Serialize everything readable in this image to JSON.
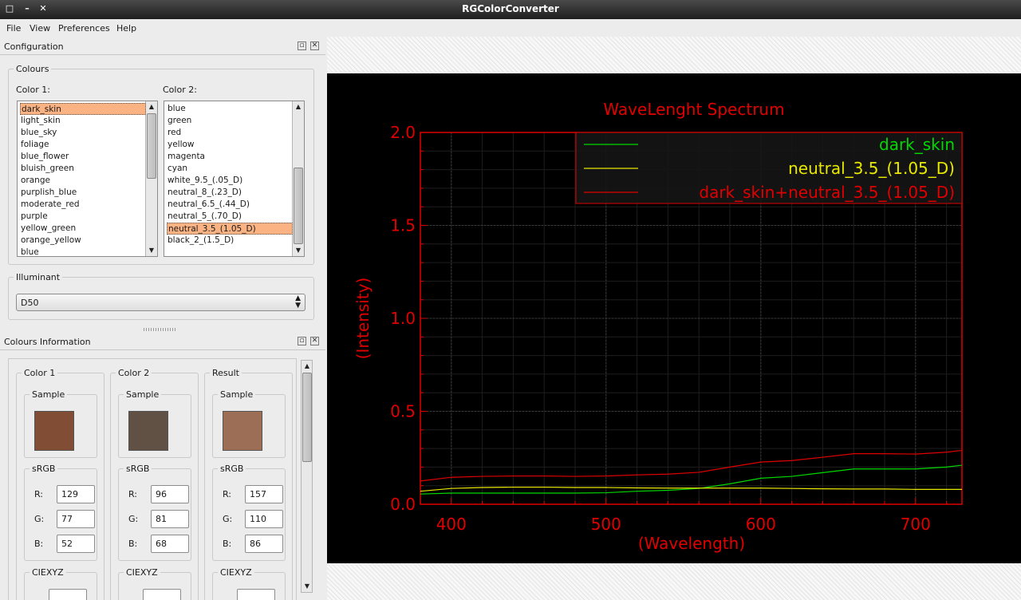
{
  "window": {
    "title": "RGColorConverter"
  },
  "menu": {
    "file": "File",
    "view": "View",
    "preferences": "Preferences",
    "help": "Help"
  },
  "configuration": {
    "title": "Configuration",
    "colours_group": "Colours",
    "color1_label": "Color 1:",
    "color2_label": "Color 2:",
    "color1_items": [
      "dark_skin",
      "light_skin",
      "blue_sky",
      "foliage",
      "blue_flower",
      "bluish_green",
      "orange",
      "purplish_blue",
      "moderate_red",
      "purple",
      "yellow_green",
      "orange_yellow",
      "blue"
    ],
    "color1_selected": "dark_skin",
    "color2_items": [
      "blue",
      "green",
      "red",
      "yellow",
      "magenta",
      "cyan",
      "white_9.5_(.05_D)",
      "neutral_8_(.23_D)",
      "neutral_6.5_(.44_D)",
      "neutral_5_(.70_D)",
      "neutral_3.5_(1.05_D)",
      "black_2_(1.5_D)"
    ],
    "color2_selected": "neutral_3.5_(1.05_D)",
    "illuminant_group": "Illuminant",
    "illuminant_value": "D50"
  },
  "info": {
    "title": "Colours Information",
    "columns": [
      {
        "title": "Color 1",
        "sample_label": "Sample",
        "swatch": "#814d34",
        "srgb_label": "sRGB",
        "r": "129",
        "g": "77",
        "b": "52",
        "xyz_label": "CIEXYZ"
      },
      {
        "title": "Color 2",
        "sample_label": "Sample",
        "swatch": "#605144",
        "srgb_label": "sRGB",
        "r": "96",
        "g": "81",
        "b": "68",
        "xyz_label": "CIEXYZ"
      },
      {
        "title": "Result",
        "sample_label": "Sample",
        "swatch": "#9d6e56",
        "srgb_label": "sRGB",
        "r": "157",
        "g": "110",
        "b": "86",
        "xyz_label": "CIEXYZ"
      }
    ],
    "r_label": "R:",
    "g_label": "G:",
    "b_label": "B:"
  },
  "chart_data": {
    "type": "line",
    "title": "WaveLenght Spectrum",
    "xlabel": "(Wavelength)",
    "ylabel": "(Intensity)",
    "xlim": [
      380,
      730
    ],
    "ylim": [
      0,
      2.0
    ],
    "xticks": [
      "400",
      "500",
      "600",
      "700"
    ],
    "yticks": [
      "0.0",
      "0.5",
      "1.0",
      "1.5",
      "2.0"
    ],
    "legend_position": "top-right",
    "x": [
      380,
      400,
      420,
      440,
      460,
      480,
      500,
      520,
      540,
      560,
      580,
      600,
      620,
      640,
      660,
      680,
      700,
      720,
      730
    ],
    "series": [
      {
        "name": "dark_skin",
        "color": "#00d800",
        "values": [
          0.055,
          0.06,
          0.06,
          0.06,
          0.06,
          0.06,
          0.062,
          0.07,
          0.075,
          0.085,
          0.11,
          0.14,
          0.15,
          0.17,
          0.19,
          0.19,
          0.19,
          0.2,
          0.21
        ]
      },
      {
        "name": "neutral_3.5_(1.05_D)",
        "color": "#e8e800",
        "values": [
          0.07,
          0.085,
          0.09,
          0.092,
          0.092,
          0.09,
          0.09,
          0.088,
          0.087,
          0.087,
          0.087,
          0.087,
          0.085,
          0.083,
          0.082,
          0.082,
          0.08,
          0.08,
          0.08
        ]
      },
      {
        "name": "dark_skin+neutral_3.5_(1.05_D)",
        "color": "#e00000",
        "values": [
          0.125,
          0.145,
          0.15,
          0.152,
          0.152,
          0.15,
          0.152,
          0.158,
          0.162,
          0.172,
          0.2,
          0.227,
          0.235,
          0.253,
          0.272,
          0.272,
          0.27,
          0.28,
          0.29
        ]
      }
    ]
  }
}
